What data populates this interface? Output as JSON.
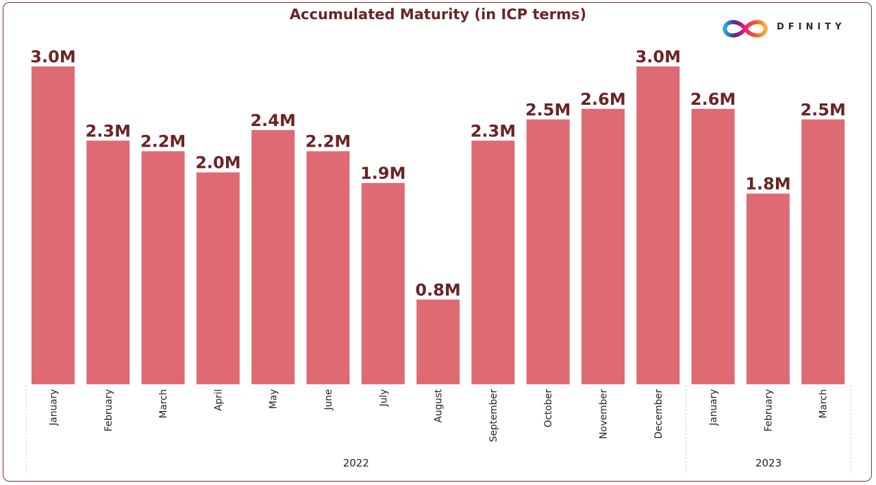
{
  "chart_data": {
    "type": "bar",
    "title": "Accumulated Maturity (in ICP terms)",
    "xlabel": "",
    "ylabel": "",
    "ylim": [
      0,
      3.0
    ],
    "categories": [
      "January",
      "February",
      "March",
      "April",
      "May",
      "June",
      "July",
      "August",
      "September",
      "October",
      "November",
      "December",
      "January",
      "February",
      "March"
    ],
    "groups": [
      {
        "label": "2022",
        "count": 12
      },
      {
        "label": "2023",
        "count": 3
      }
    ],
    "values": [
      3.0,
      2.3,
      2.2,
      2.0,
      2.4,
      2.2,
      1.9,
      0.8,
      2.3,
      2.5,
      2.6,
      3.0,
      2.6,
      1.8,
      2.5
    ],
    "data_labels": [
      "3.0M",
      "2.3M",
      "2.2M",
      "2.0M",
      "2.4M",
      "2.2M",
      "1.9M",
      "0.8M",
      "2.3M",
      "2.5M",
      "2.6M",
      "3.0M",
      "2.6M",
      "1.8M",
      "2.5M"
    ],
    "bar_color": "#de6b73",
    "label_color": "#6b2424"
  },
  "logo": {
    "text": "DFINITY",
    "icon": "infinity-logo-icon"
  }
}
